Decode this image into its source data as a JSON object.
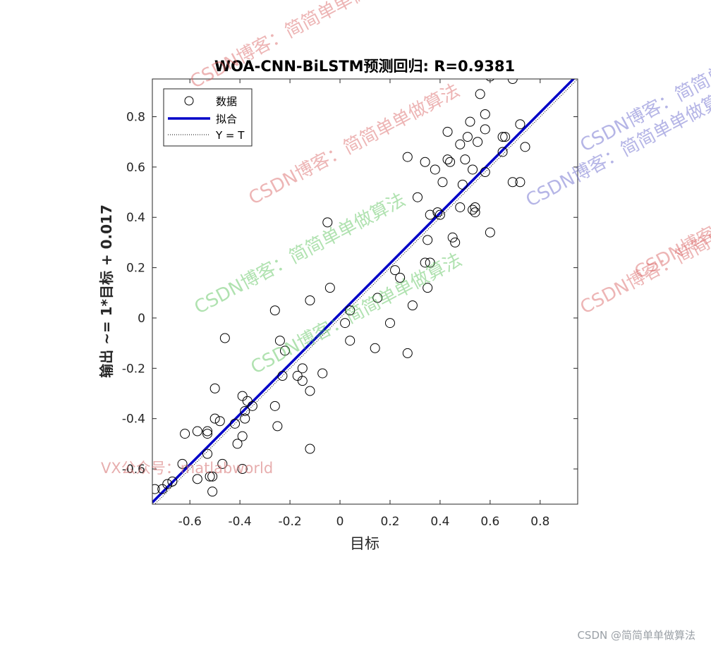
{
  "chart_data": {
    "type": "scatter",
    "title": "WOA-CNN-BiLSTM预测回归: R=0.9381",
    "xlabel": "目标",
    "ylabel": "输出 ~= 1*目标 + 0.017",
    "xlim": [
      -0.75,
      0.95
    ],
    "ylim": [
      -0.74,
      0.95
    ],
    "xticks": [
      -0.6,
      -0.4,
      -0.2,
      0,
      0.2,
      0.4,
      0.6,
      0.8
    ],
    "xtick_labels": [
      "-0.6",
      "-0.4",
      "-0.2",
      "0",
      "0.2",
      "0.4",
      "0.6",
      "0.8"
    ],
    "yticks": [
      -0.6,
      -0.4,
      -0.2,
      0,
      0.2,
      0.4,
      0.6,
      0.8
    ],
    "ytick_labels": [
      "-0.6",
      "-0.4",
      "-0.2",
      "0",
      "0.2",
      "0.4",
      "0.6",
      "0.8"
    ],
    "grid": false,
    "legend": {
      "placement": "top-left",
      "entries": [
        {
          "label": "数据",
          "style": "circle"
        },
        {
          "label": "拟合",
          "style": "line"
        },
        {
          "label": "Y = T",
          "style": "dotted"
        }
      ]
    },
    "fit": {
      "slope": 1,
      "intercept": 0.017,
      "color": "#0000c8"
    },
    "identity_line": {
      "color": "#000000"
    },
    "points": [
      [
        -0.74,
        -0.68
      ],
      [
        -0.71,
        -0.68
      ],
      [
        -0.69,
        -0.66
      ],
      [
        -0.67,
        -0.65
      ],
      [
        -0.63,
        -0.58
      ],
      [
        -0.62,
        -0.46
      ],
      [
        -0.57,
        -0.64
      ],
      [
        -0.57,
        -0.45
      ],
      [
        -0.53,
        -0.46
      ],
      [
        -0.53,
        -0.45
      ],
      [
        -0.53,
        -0.54
      ],
      [
        -0.52,
        -0.63
      ],
      [
        -0.51,
        -0.63
      ],
      [
        -0.51,
        -0.69
      ],
      [
        -0.5,
        -0.4
      ],
      [
        -0.5,
        -0.28
      ],
      [
        -0.48,
        -0.41
      ],
      [
        -0.47,
        -0.58
      ],
      [
        -0.46,
        -0.08
      ],
      [
        -0.42,
        -0.42
      ],
      [
        -0.41,
        -0.5
      ],
      [
        -0.39,
        -0.47
      ],
      [
        -0.39,
        -0.31
      ],
      [
        -0.39,
        -0.6
      ],
      [
        -0.38,
        -0.4
      ],
      [
        -0.38,
        -0.37
      ],
      [
        -0.37,
        -0.33
      ],
      [
        -0.35,
        -0.35
      ],
      [
        -0.26,
        -0.35
      ],
      [
        -0.26,
        0.03
      ],
      [
        -0.25,
        -0.43
      ],
      [
        -0.24,
        -0.09
      ],
      [
        -0.23,
        -0.23
      ],
      [
        -0.22,
        -0.13
      ],
      [
        -0.17,
        -0.23
      ],
      [
        -0.15,
        -0.2
      ],
      [
        -0.15,
        -0.25
      ],
      [
        -0.12,
        -0.29
      ],
      [
        -0.12,
        0.07
      ],
      [
        -0.12,
        -0.52
      ],
      [
        -0.07,
        -0.22
      ],
      [
        -0.05,
        0.38
      ],
      [
        -0.04,
        0.12
      ],
      [
        0.02,
        -0.02
      ],
      [
        0.04,
        0.03
      ],
      [
        0.04,
        -0.09
      ],
      [
        0.14,
        -0.12
      ],
      [
        0.15,
        0.08
      ],
      [
        0.2,
        -0.02
      ],
      [
        0.22,
        0.19
      ],
      [
        0.24,
        0.16
      ],
      [
        0.27,
        0.64
      ],
      [
        0.27,
        -0.14
      ],
      [
        0.29,
        0.05
      ],
      [
        0.31,
        0.48
      ],
      [
        0.34,
        0.62
      ],
      [
        0.34,
        0.22
      ],
      [
        0.35,
        0.31
      ],
      [
        0.35,
        0.12
      ],
      [
        0.36,
        0.22
      ],
      [
        0.36,
        0.41
      ],
      [
        0.38,
        0.59
      ],
      [
        0.39,
        0.42
      ],
      [
        0.4,
        0.41
      ],
      [
        0.41,
        0.54
      ],
      [
        0.43,
        0.74
      ],
      [
        0.43,
        0.63
      ],
      [
        0.44,
        0.62
      ],
      [
        0.45,
        0.32
      ],
      [
        0.46,
        0.3
      ],
      [
        0.48,
        0.69
      ],
      [
        0.48,
        0.44
      ],
      [
        0.49,
        0.53
      ],
      [
        0.5,
        0.63
      ],
      [
        0.51,
        0.72
      ],
      [
        0.52,
        0.78
      ],
      [
        0.53,
        0.59
      ],
      [
        0.53,
        0.43
      ],
      [
        0.54,
        0.44
      ],
      [
        0.54,
        0.42
      ],
      [
        0.55,
        0.7
      ],
      [
        0.56,
        0.89
      ],
      [
        0.58,
        0.81
      ],
      [
        0.58,
        0.75
      ],
      [
        0.58,
        0.58
      ],
      [
        0.6,
        0.96
      ],
      [
        0.6,
        0.34
      ],
      [
        0.65,
        0.66
      ],
      [
        0.65,
        0.72
      ],
      [
        0.66,
        0.72
      ],
      [
        0.69,
        0.54
      ],
      [
        0.69,
        0.95
      ],
      [
        0.72,
        0.77
      ],
      [
        0.72,
        0.54
      ],
      [
        0.74,
        0.68
      ]
    ]
  },
  "watermarks": {
    "csdn": "CSDN博客：简简单单做算法",
    "vx": "VX公众号：matlabworld",
    "footer": "CSDN @简简单单做算法"
  }
}
